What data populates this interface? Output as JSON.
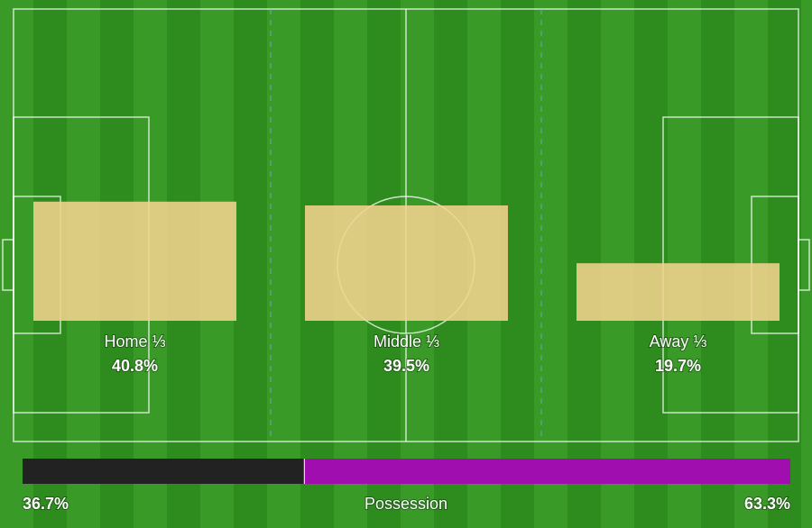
{
  "chart_data": [
    {
      "type": "zone-bar",
      "categories": [
        "Home ⅓",
        "Middle ⅓",
        "Away ⅓"
      ],
      "values": [
        40.8,
        39.5,
        19.7
      ],
      "value_labels": [
        "40.8%",
        "39.5%",
        "19.7%"
      ],
      "color": "#f2d38e"
    },
    {
      "type": "split-bar",
      "title": "Possession",
      "values": [
        36.7,
        63.3
      ],
      "value_labels": [
        "36.7%",
        "63.3%"
      ],
      "colors": [
        "#222222",
        "#a00eb0"
      ]
    }
  ]
}
